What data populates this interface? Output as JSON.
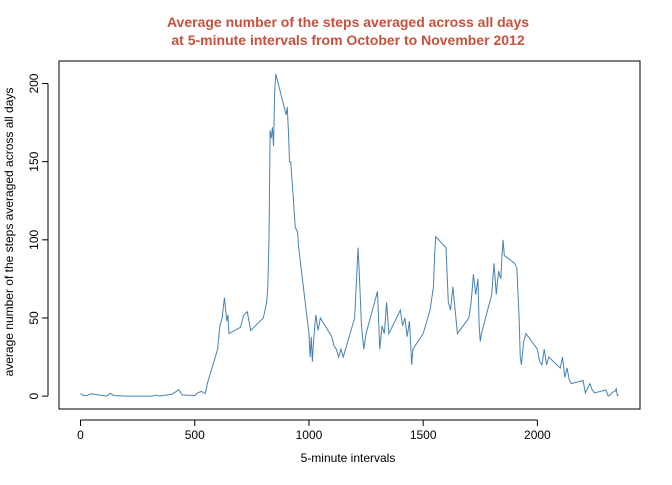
{
  "chart_data": {
    "type": "line",
    "title": [
      "Average number of the steps averaged across all days",
      "at 5-minute intervals from October to November 2012"
    ],
    "xlabel": "5-minute intervals",
    "ylabel": "average number of the steps averaged across all days",
    "color": "#4682b4",
    "title_color": "#c8503c",
    "x": [
      0,
      15,
      30,
      45,
      100,
      115,
      130,
      145,
      200,
      215,
      230,
      245,
      300,
      315,
      330,
      345,
      400,
      415,
      430,
      445,
      500,
      515,
      530,
      545,
      550,
      555,
      600,
      610,
      620,
      630,
      640,
      645,
      650,
      700,
      715,
      730,
      745,
      800,
      815,
      820,
      825,
      830,
      835,
      840,
      845,
      850,
      855,
      900,
      905,
      910,
      915,
      920,
      930,
      940,
      950,
      955,
      1000,
      1005,
      1010,
      1015,
      1020,
      1030,
      1040,
      1050,
      1100,
      1110,
      1120,
      1130,
      1140,
      1150,
      1200,
      1210,
      1215,
      1220,
      1230,
      1240,
      1250,
      1300,
      1310,
      1320,
      1330,
      1340,
      1350,
      1400,
      1410,
      1420,
      1430,
      1440,
      1450,
      1455,
      1500,
      1510,
      1520,
      1530,
      1545,
      1550,
      1555,
      1600,
      1610,
      1620,
      1630,
      1640,
      1650,
      1700,
      1710,
      1720,
      1730,
      1740,
      1745,
      1750,
      1755,
      1800,
      1810,
      1820,
      1830,
      1840,
      1845,
      1850,
      1855,
      1900,
      1910,
      1920,
      1925,
      1930,
      1940,
      1950,
      2000,
      2010,
      2020,
      2030,
      2040,
      2050,
      2100,
      2110,
      2120,
      2130,
      2140,
      2150,
      2200,
      2210,
      2220,
      2230,
      2240,
      2250,
      2300,
      2310,
      2320,
      2330,
      2340,
      2345,
      2350,
      2355
    ],
    "y": [
      1.7,
      0.2,
      0.5,
      1.5,
      0.3,
      0,
      1.8,
      0.4,
      0,
      0,
      0,
      0,
      0,
      0,
      0.6,
      0.1,
      1.2,
      2.6,
      4.1,
      0.8,
      0.3,
      2.3,
      3,
      1.5,
      4,
      8,
      30,
      45,
      50,
      63,
      48,
      52,
      40,
      44,
      52,
      54,
      42,
      50,
      60,
      70,
      100,
      170,
      165,
      172,
      160,
      195,
      206,
      180,
      185,
      170,
      150,
      150,
      130,
      108,
      105,
      95,
      40,
      25,
      38,
      22,
      35,
      52,
      42,
      50,
      38,
      32,
      30,
      25,
      30,
      25,
      50,
      80,
      95,
      80,
      45,
      30,
      40,
      67,
      30,
      45,
      40,
      60,
      40,
      55,
      45,
      50,
      38,
      48,
      20,
      30,
      40,
      45,
      50,
      55,
      70,
      90,
      102,
      95,
      60,
      55,
      70,
      55,
      40,
      50,
      60,
      78,
      65,
      75,
      45,
      35,
      40,
      65,
      85,
      65,
      80,
      75,
      90,
      100,
      90,
      85,
      82,
      50,
      25,
      20,
      35,
      40,
      30,
      22,
      20,
      30,
      20,
      25,
      18,
      25,
      12,
      18,
      10,
      8,
      10,
      2,
      5,
      8,
      4,
      2,
      4,
      0,
      1,
      2.6,
      3,
      4.7,
      0.4,
      1.1
    ],
    "xlim": [
      -94.2,
      2449.2
    ],
    "ylim": [
      -8.25,
      214.42
    ],
    "xticks": [
      0,
      500,
      1000,
      1500,
      2000
    ],
    "yticks": [
      0,
      50,
      100,
      150,
      200
    ]
  }
}
